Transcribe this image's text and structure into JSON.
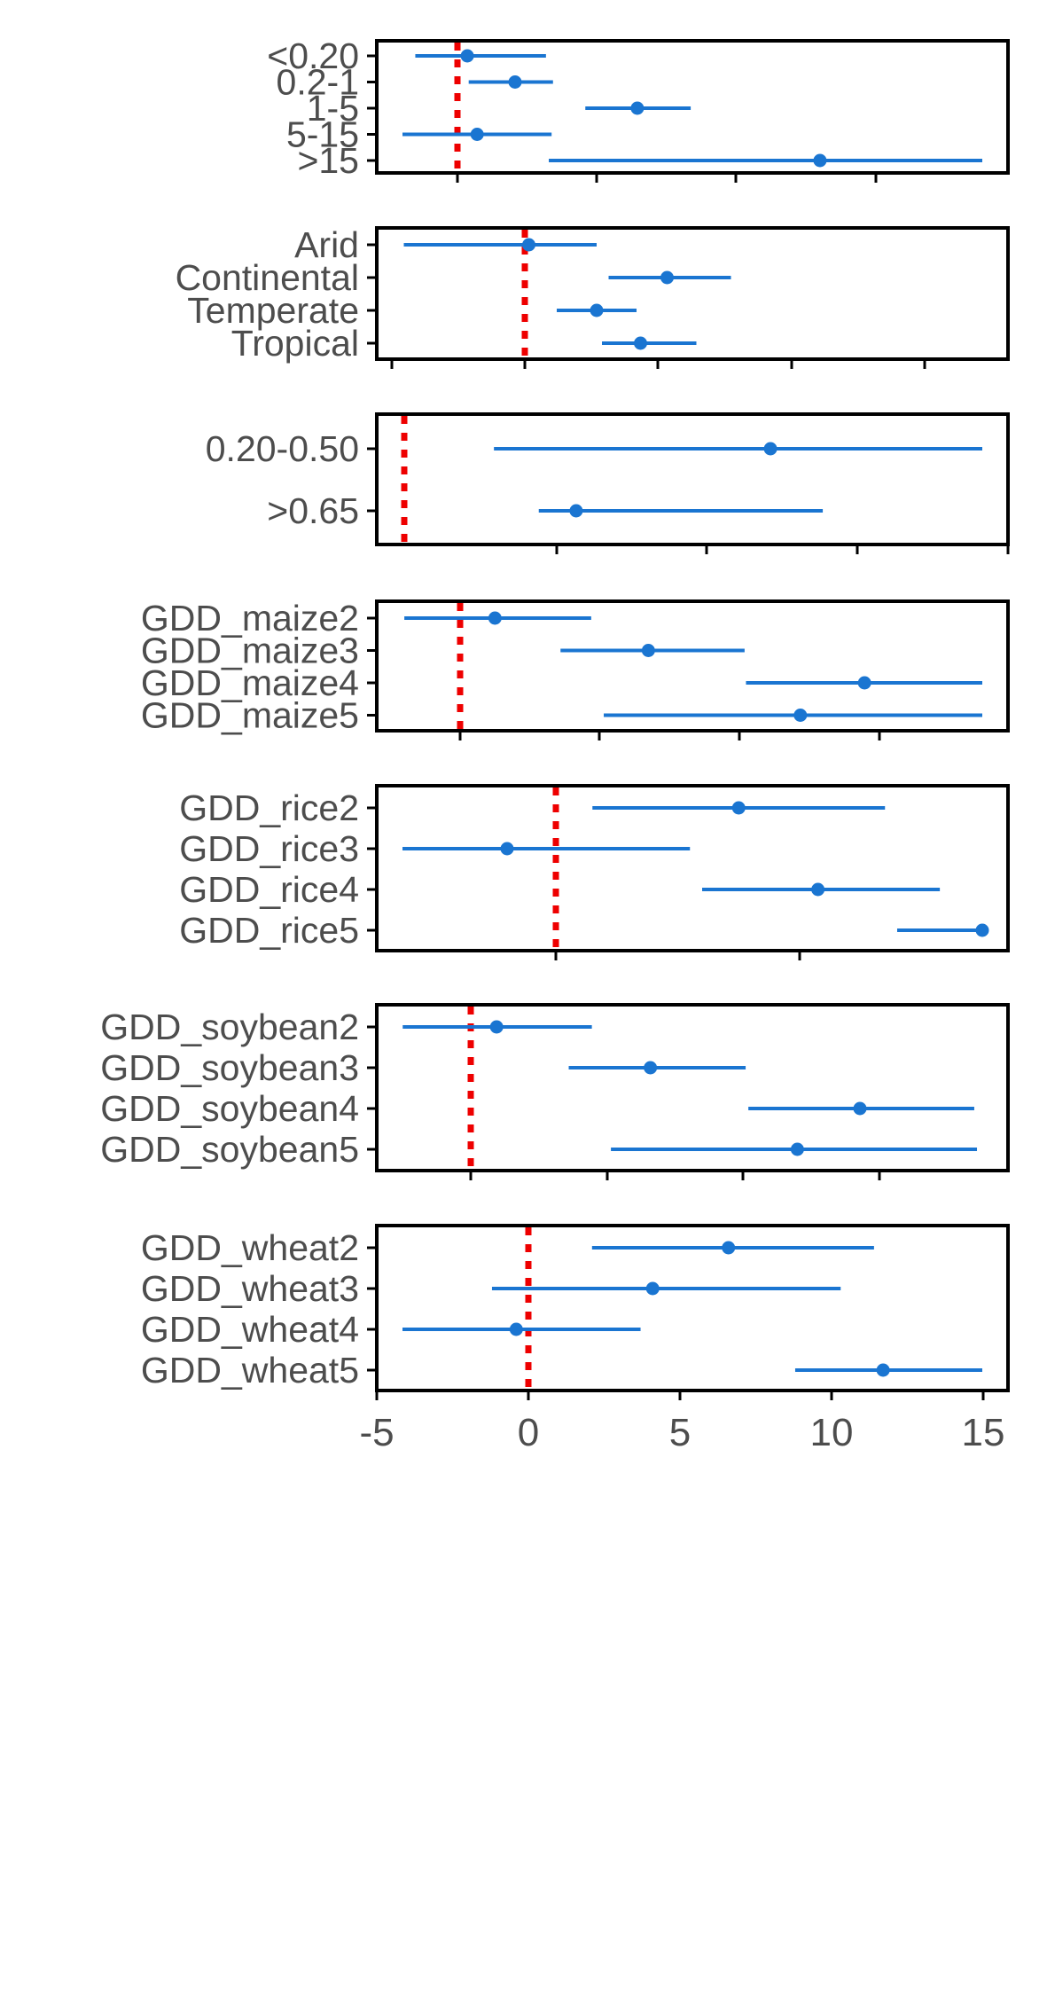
{
  "colors": {
    "series": "#1a75d1",
    "reference_line": "#ee0000",
    "axis": "#000000",
    "label_text": "#4d4d4d"
  },
  "chart_data": [
    {
      "type": "forest",
      "id": "panel-1",
      "xlim": [
        -5,
        15
      ],
      "reference_x": 0,
      "show_tick_labels": false,
      "categories": [
        "<0.20",
        "0.2-1",
        "1-5",
        "5-15",
        ">15"
      ],
      "estimates": [
        0.35,
        2.05,
        6.4,
        0.7,
        12.9
      ],
      "ci_low": [
        -1.5,
        0.4,
        4.55,
        -3.25,
        3.25
      ],
      "ci_high": [
        3.15,
        3.4,
        8.3,
        3.35,
        21.0
      ]
    },
    {
      "type": "forest",
      "id": "panel-2",
      "xlim": [
        -5,
        15
      ],
      "reference_x": 0,
      "show_tick_labels": false,
      "categories": [
        "Arid",
        "Continental",
        "Temperate",
        "Tropical"
      ],
      "estimates": [
        0.15,
        5.35,
        2.7,
        4.35
      ],
      "ci_low": [
        -4.55,
        3.15,
        1.2,
        2.9
      ],
      "ci_high": [
        2.7,
        7.75,
        4.2,
        6.45
      ]
    },
    {
      "type": "forest",
      "id": "panel-3",
      "xlim": [
        -5,
        15
      ],
      "reference_x": 0,
      "show_tick_labels": false,
      "categories": [
        "0.20-0.50",
        ">0.65"
      ],
      "estimates": [
        4.9,
        2.3
      ],
      "ci_low": [
        1.2,
        1.8
      ],
      "ci_high": [
        7.9,
        5.6
      ]
    },
    {
      "type": "forest",
      "id": "panel-4",
      "xlim": [
        -5,
        15
      ],
      "reference_x": 0,
      "show_tick_labels": false,
      "categories": [
        "GDD_maize2",
        "GDD_maize3",
        "GDD_maize4",
        "GDD_maize5"
      ],
      "estimates": [
        0.25,
        1.35,
        2.9,
        2.44
      ],
      "ci_low": [
        -0.4,
        0.72,
        2.05,
        1.03
      ],
      "ci_high": [
        0.94,
        2.04,
        3.76,
        3.78
      ]
    },
    {
      "type": "forest",
      "id": "panel-5",
      "xlim": [
        -5,
        15
      ],
      "reference_x": 0,
      "show_tick_labels": false,
      "categories": [
        "GDD_rice2",
        "GDD_rice3",
        "GDD_rice4",
        "GDD_rice5"
      ],
      "estimates": [
        1.5,
        -0.4,
        2.15,
        4.05
      ],
      "ci_low": [
        0.3,
        -1.8,
        1.2,
        2.8
      ],
      "ci_high": [
        2.7,
        1.1,
        3.15,
        5.2
      ]
    },
    {
      "type": "forest",
      "id": "panel-6",
      "xlim": [
        -5,
        15
      ],
      "reference_x": 0,
      "show_tick_labels": false,
      "categories": [
        "GDD_soybean2",
        "GDD_soybean3",
        "GDD_soybean4",
        "GDD_soybean5"
      ],
      "estimates": [
        0.95,
        6.6,
        14.3,
        12.0
      ],
      "ci_low": [
        -2.5,
        3.6,
        10.2,
        5.15
      ],
      "ci_high": [
        4.45,
        10.1,
        18.5,
        18.6
      ]
    },
    {
      "type": "forest",
      "id": "panel-7",
      "xlim": [
        -5,
        15
      ],
      "reference_x": 0,
      "show_tick_labels": true,
      "ticks": [
        -5,
        0,
        5,
        10,
        15
      ],
      "tick_labels": [
        "-5",
        "0",
        "5",
        "10",
        "15"
      ],
      "categories": [
        "GDD_wheat2",
        "GDD_wheat3",
        "GDD_wheat4",
        "GDD_wheat5"
      ],
      "estimates": [
        6.6,
        4.1,
        -0.4,
        11.7
      ],
      "ci_low": [
        2.1,
        -1.2,
        -4.2,
        8.8
      ],
      "ci_high": [
        11.4,
        10.3,
        3.7,
        15.0
      ]
    }
  ]
}
